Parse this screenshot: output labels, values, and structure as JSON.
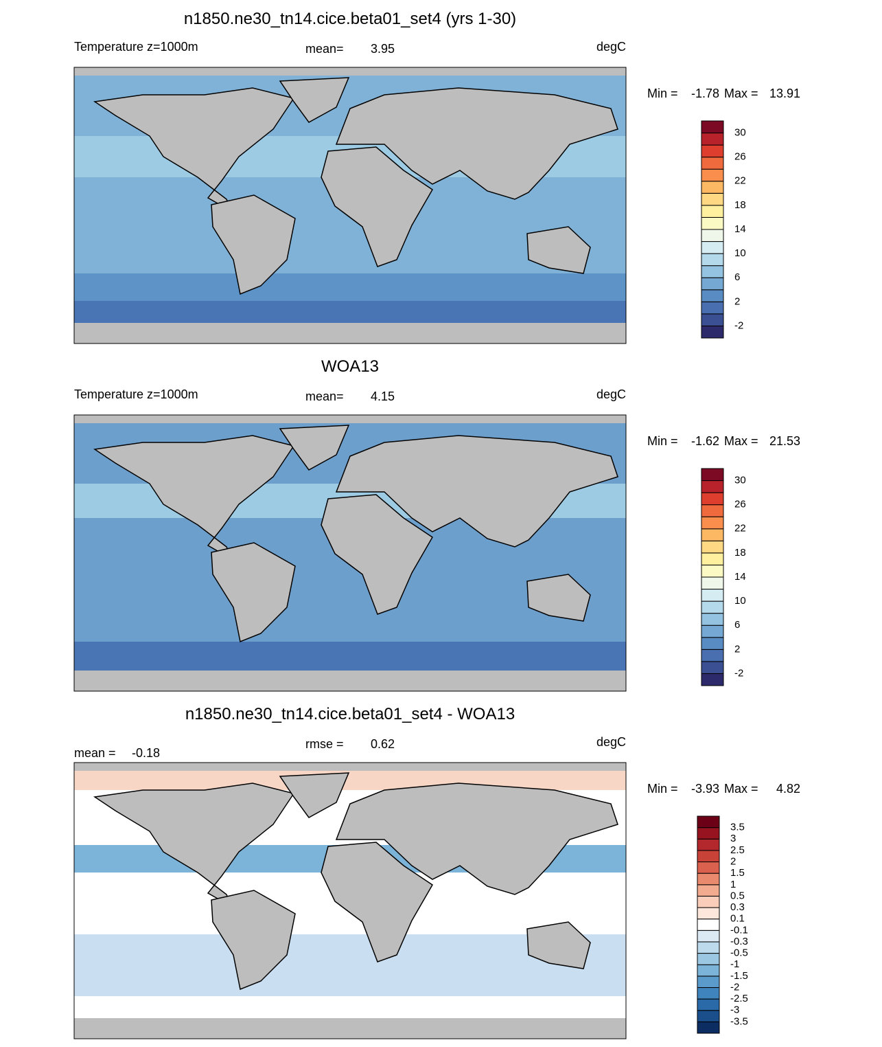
{
  "panels": [
    {
      "title": "n1850.ne30_tn14.cice.beta01_set4 (yrs 1-30)",
      "left_label": "Temperature z=1000m",
      "center_label": "mean=",
      "center_value": 3.95,
      "units": "degC",
      "min_label": "Min =",
      "min": -1.78,
      "max_label": "Max =",
      "max": 13.91,
      "colorbar": {
        "colors": [
          "#2c2a6b",
          "#3b4f93",
          "#4a6fb0",
          "#5a8cc4",
          "#75a8d3",
          "#93c3e0",
          "#b4d9ea",
          "#d4ecf2",
          "#eef7e9",
          "#fbf9c4",
          "#fff0a0",
          "#fed883",
          "#fdb864",
          "#f98e4d",
          "#ef6a3d",
          "#dd3e2d",
          "#b8222a",
          "#7d0a25"
        ],
        "labels": [
          -2,
          2,
          6,
          10,
          14,
          18,
          22,
          26,
          30
        ]
      }
    },
    {
      "title": "WOA13",
      "left_label": "Temperature z=1000m",
      "center_label": "mean=",
      "center_value": 4.15,
      "units": "degC",
      "min_label": "Min =",
      "min": -1.62,
      "max_label": "Max =",
      "max": 21.53,
      "colorbar": {
        "colors": [
          "#2c2a6b",
          "#3b4f93",
          "#4a6fb0",
          "#5a8cc4",
          "#75a8d3",
          "#93c3e0",
          "#b4d9ea",
          "#d4ecf2",
          "#eef7e9",
          "#fbf9c4",
          "#fff0a0",
          "#fed883",
          "#fdb864",
          "#f98e4d",
          "#ef6a3d",
          "#dd3e2d",
          "#b8222a",
          "#7d0a25"
        ],
        "labels": [
          -2,
          2,
          6,
          10,
          14,
          18,
          22,
          26,
          30
        ]
      }
    },
    {
      "title": "n1850.ne30_tn14.cice.beta01_set4 - WOA13",
      "left_label": "mean =",
      "left_value": -0.18,
      "center_label": "rmse =",
      "center_value": 0.62,
      "units": "degC",
      "min_label": "Min =",
      "min": -3.93,
      "max_label": "Max =",
      "max": 4.82,
      "colorbar": {
        "colors": [
          "#0b2d61",
          "#1a4f8c",
          "#2b6aa8",
          "#3f84bd",
          "#5a9bcc",
          "#7bb3d9",
          "#9bc7e3",
          "#bcdaec",
          "#dae9f3",
          "#ffffff",
          "#fde7dd",
          "#f9cdb9",
          "#f3ab8f",
          "#e98a6e",
          "#d9614e",
          "#c84238",
          "#b3282d",
          "#96131f",
          "#6b0016"
        ],
        "labels": [
          -3.5,
          -3,
          -2.5,
          -2,
          -1.5,
          -1,
          -0.5,
          -0.3,
          -0.1,
          0.1,
          0.3,
          0.5,
          1,
          1.5,
          2,
          2.5,
          3,
          3.5
        ]
      }
    }
  ]
}
